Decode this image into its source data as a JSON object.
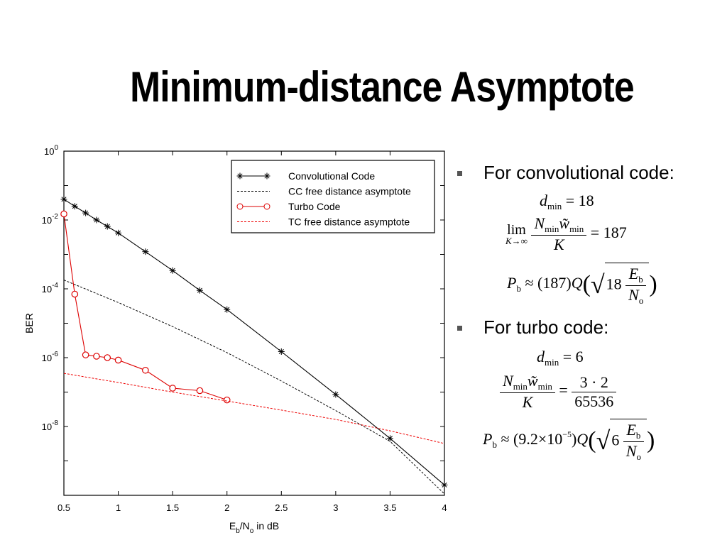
{
  "slide": {
    "title": "Minimum-distance Asymptote",
    "bullets": [
      {
        "label": "For convolutional code:"
      },
      {
        "label": "For turbo code:"
      }
    ],
    "conv_eqs": {
      "dmin_lhs": "d",
      "dmin_sub": "min",
      "dmin_rhs": "= 18",
      "lim_word": "lim",
      "lim_under": "K→∞",
      "num_N": "N",
      "num_w": "w̃",
      "sub_min": "min",
      "den": "K",
      "lim_rhs": "= 187",
      "pb_lhs": "P",
      "pb_sub": "b",
      "approx": "≈",
      "coef": "(187)",
      "Q": "Q",
      "rad_coef": "18",
      "eb": "E",
      "eb_sub": "b",
      "no": "N",
      "no_sub": "o"
    },
    "turbo_eqs": {
      "dmin_lhs": "d",
      "dmin_sub": "min",
      "dmin_rhs": "= 6",
      "num_N": "N",
      "num_w": "w̃",
      "sub_min": "min",
      "den": "K",
      "frac_num": "3 · 2",
      "frac_den": "65536",
      "pb_lhs": "P",
      "pb_sub": "b",
      "approx": "≈",
      "coef_open": "(9.2×10",
      "coef_exp": "−5",
      "coef_close": ")",
      "Q": "Q",
      "rad_coef": "6",
      "eb": "E",
      "eb_sub": "b",
      "no": "N",
      "no_sub": "o"
    }
  },
  "chart_data": {
    "type": "line",
    "title": "",
    "xlabel": "Eb/No in dB",
    "xlabel_parts": [
      "E",
      "b",
      "/N",
      "o",
      " in dB"
    ],
    "ylabel": "BER",
    "xlim": [
      0.5,
      4
    ],
    "ylim_log10": [
      -10,
      0
    ],
    "y_log_scale": true,
    "x_ticks": [
      0.5,
      1,
      1.5,
      2,
      2.5,
      3,
      3.5,
      4
    ],
    "x_tick_labels": [
      "0.5",
      "1",
      "1.5",
      "2",
      "2.5",
      "3",
      "3.5",
      "4"
    ],
    "y_tick_exponents": [
      0,
      -2,
      -4,
      -6,
      -8
    ],
    "y_tick_base": "10",
    "legend_position": "top-right",
    "series": [
      {
        "name": "Convolutional Code",
        "color": "#000000",
        "style": "solid",
        "marker": "star",
        "x": [
          0.5,
          0.6,
          0.7,
          0.8,
          0.9,
          1.0,
          1.25,
          1.5,
          1.75,
          2.0,
          2.5,
          3.0,
          3.5,
          4.0
        ],
        "y": [
          0.04,
          0.025,
          0.016,
          0.01,
          0.0065,
          0.0042,
          0.0012,
          0.00034,
          9e-05,
          2.5e-05,
          1.5e-06,
          8.5e-08,
          4.5e-09,
          2e-10
        ]
      },
      {
        "name": "CC free distance asymptote",
        "color": "#000000",
        "style": "dashed",
        "marker": "none",
        "x": [
          0.5,
          1.0,
          1.5,
          2.0,
          2.5,
          3.0,
          3.5,
          4.0
        ],
        "y": [
          0.00018,
          4e-05,
          8e-06,
          1.4e-06,
          2.1e-07,
          2.9e-08,
          3.7e-09,
          1.1e-10
        ]
      },
      {
        "name": "Turbo Code",
        "color": "#dd0000",
        "style": "solid",
        "marker": "circle",
        "x": [
          0.5,
          0.6,
          0.7,
          0.8,
          0.9,
          1.0,
          1.25,
          1.5,
          1.75,
          2.0
        ],
        "y": [
          0.015,
          7e-05,
          1.2e-06,
          1.1e-06,
          1e-06,
          8.5e-07,
          4.3e-07,
          1.3e-07,
          1.1e-07,
          5.9e-08
        ]
      },
      {
        "name": "TC free distance asymptote",
        "color": "#ee0000",
        "style": "dashed",
        "marker": "none",
        "x": [
          0.5,
          1.0,
          1.5,
          2.0,
          2.5,
          3.0,
          3.5,
          4.0
        ],
        "y": [
          3.5e-07,
          1.9e-07,
          1e-07,
          5.5e-08,
          3e-08,
          1.6e-08,
          7.5e-09,
          3.2e-09
        ]
      }
    ]
  }
}
